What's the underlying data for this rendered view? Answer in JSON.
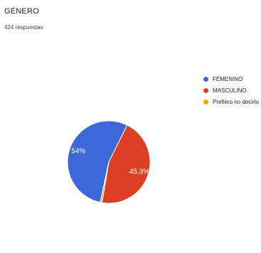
{
  "card": {
    "title": "GÉNERO",
    "responses": "424 respuestas"
  },
  "chart_data": {
    "type": "pie",
    "title": "GÉNERO",
    "subtitle": "424 respuestas",
    "legend_position": "right",
    "slices": [
      {
        "name": "FEMENINO",
        "value": 54.0,
        "label": "54%",
        "color": "#3d68d8"
      },
      {
        "name": "MASCULINO",
        "value": 45.3,
        "label": "45,3%",
        "color": "#dc3f23"
      },
      {
        "name": "Prefiero no decirlo",
        "value": 0.7,
        "label": "",
        "color": "#f5a300"
      }
    ]
  }
}
